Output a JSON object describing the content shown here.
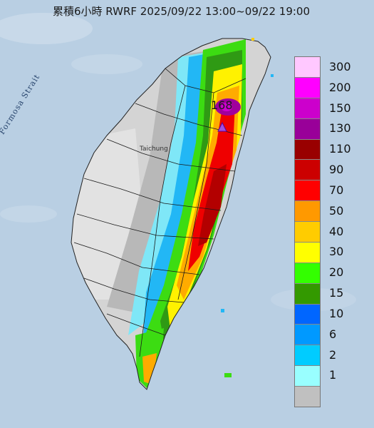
{
  "title": "累積6小時 RWRF 2025/09/22 13:00~09/22 19:00",
  "map_labels": {
    "strait": "Formosa Strait",
    "city": "Taichung",
    "max_value": "168"
  },
  "legend": {
    "levels": [
      {
        "label": "300",
        "color": "#ffc8ff"
      },
      {
        "label": "200",
        "color": "#ff00ff"
      },
      {
        "label": "150",
        "color": "#cc00cc"
      },
      {
        "label": "130",
        "color": "#990099"
      },
      {
        "label": "110",
        "color": "#990000"
      },
      {
        "label": "90",
        "color": "#cc0000"
      },
      {
        "label": "70",
        "color": "#ff0000"
      },
      {
        "label": "50",
        "color": "#ff9900"
      },
      {
        "label": "40",
        "color": "#ffcc00"
      },
      {
        "label": "30",
        "color": "#ffff00"
      },
      {
        "label": "20",
        "color": "#33ff00"
      },
      {
        "label": "15",
        "color": "#339900"
      },
      {
        "label": "10",
        "color": "#0066ff"
      },
      {
        "label": "6",
        "color": "#0099ff"
      },
      {
        "label": "2",
        "color": "#00ccff"
      },
      {
        "label": "1",
        "color": "#99ffff"
      },
      {
        "label": "",
        "color": "#c0c0c0"
      }
    ]
  },
  "colors": {
    "sea": "#b9cfe3",
    "land_base": "#d4d4d4"
  }
}
